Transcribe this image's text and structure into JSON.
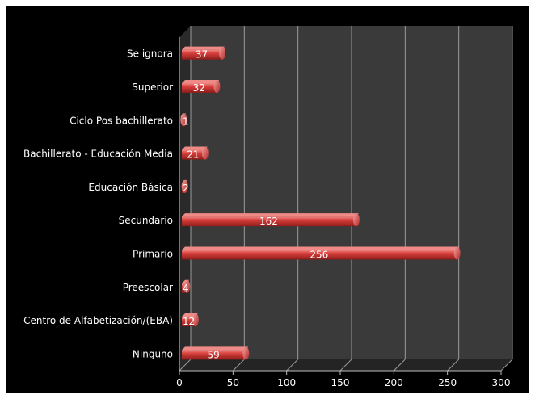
{
  "chart_data": {
    "type": "bar",
    "orientation": "horizontal",
    "title": "",
    "xlabel": "",
    "ylabel": "",
    "categories": [
      "Ninguno",
      "Centro de Alfabetización/(EBA)",
      "Preescolar",
      "Primario",
      "Secundario",
      "Educación Básica",
      "Bachillerato - Educación Media",
      "Ciclo Pos bachillerato",
      "Superior",
      "Se ignora"
    ],
    "values": [
      59,
      12,
      4,
      256,
      162,
      2,
      21,
      1,
      32,
      37
    ],
    "xlim": [
      0,
      300
    ],
    "xticks": [
      0,
      50,
      100,
      150,
      200,
      250,
      300
    ],
    "grid": true,
    "legend": "none",
    "colors": {
      "background": "#000000",
      "plot_wall": "#3a3a3a",
      "gridline": "#9a9a9a",
      "bar": "#c9312f",
      "bar_highlight": "#f08a87",
      "text": "#ffffff"
    }
  }
}
